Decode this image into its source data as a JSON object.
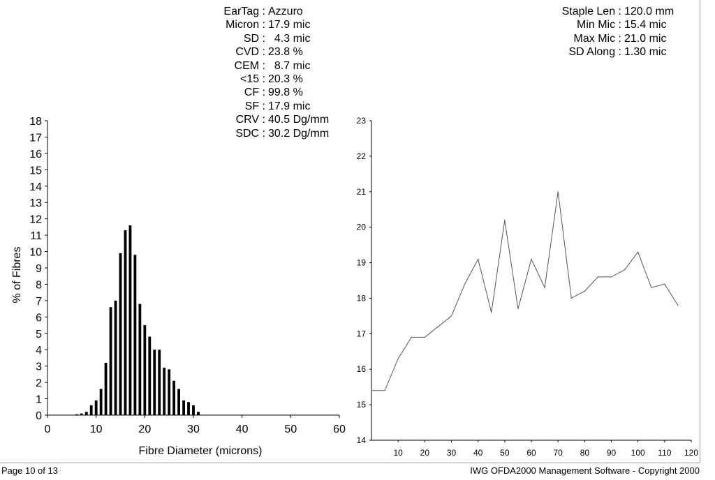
{
  "stats_left": [
    {
      "label": "EarTag :",
      "value": "Azzuro"
    },
    {
      "label": "Micron :",
      "value": "17.9 mic"
    },
    {
      "label": "SD :",
      "value": "  4.3 mic"
    },
    {
      "label": "CVD :",
      "value": "23.8 %"
    },
    {
      "label": "CEM :",
      "value": "  8.7 mic"
    },
    {
      "label": "<15 :",
      "value": "20.3 %"
    },
    {
      "label": "CF :",
      "value": "99.8 %"
    },
    {
      "label": "SF :",
      "value": "17.9 mic"
    },
    {
      "label": "CRV :",
      "value": "40.5 Dg/mm"
    },
    {
      "label": "SDC :",
      "value": "30.2 Dg/mm"
    }
  ],
  "stats_right": [
    {
      "label": "Staple Len :",
      "value": "120.0 mm"
    },
    {
      "label": "Min Mic :",
      "value": "15.4 mic"
    },
    {
      "label": "Max Mic :",
      "value": "21.0 mic"
    },
    {
      "label": "SD Along :",
      "value": "1.30 mic"
    }
  ],
  "footer": {
    "page": "Page 10 of 13",
    "copyright": "IWG OFDA2000 Management Software - Copyright 2000"
  },
  "chart_data": [
    {
      "type": "bar",
      "xlabel": "Fibre Diameter (microns)",
      "ylabel": "% of Fibres",
      "xlim": [
        0,
        60
      ],
      "ylim": [
        0,
        18
      ],
      "xticks": [
        0,
        10,
        20,
        30,
        40,
        50,
        60
      ],
      "yticks": [
        0,
        1,
        2,
        3,
        4,
        5,
        6,
        7,
        8,
        9,
        10,
        11,
        12,
        13,
        14,
        15,
        16,
        17,
        18
      ],
      "x": [
        6,
        7,
        8,
        9,
        10,
        11,
        12,
        13,
        14,
        15,
        16,
        17,
        18,
        19,
        20,
        21,
        22,
        23,
        24,
        25,
        26,
        27,
        28,
        29,
        30,
        31
      ],
      "values": [
        0.05,
        0.1,
        0.2,
        0.6,
        0.9,
        1.6,
        3.2,
        6.6,
        7.0,
        9.9,
        11.3,
        11.6,
        9.8,
        6.8,
        5.5,
        4.8,
        4.0,
        4.0,
        2.9,
        2.8,
        2.1,
        1.6,
        0.9,
        0.8,
        0.6,
        0.2
      ]
    },
    {
      "type": "line",
      "xlim": [
        0,
        120
      ],
      "ylim": [
        14,
        23
      ],
      "xticks": [
        10,
        20,
        30,
        40,
        50,
        60,
        70,
        80,
        90,
        100,
        110,
        120
      ],
      "yticks": [
        14,
        15,
        16,
        17,
        18,
        19,
        20,
        21,
        22,
        23
      ],
      "x": [
        0,
        5,
        10,
        15,
        20,
        25,
        30,
        35,
        40,
        45,
        50,
        55,
        60,
        65,
        70,
        75,
        80,
        85,
        90,
        95,
        100,
        105,
        110,
        115
      ],
      "y": [
        15.4,
        15.4,
        16.3,
        16.9,
        16.9,
        17.2,
        17.5,
        18.4,
        19.1,
        17.6,
        20.2,
        17.7,
        19.1,
        18.3,
        21.0,
        18.0,
        18.2,
        18.6,
        18.6,
        18.8,
        19.3,
        18.3,
        18.4,
        17.8
      ]
    }
  ]
}
